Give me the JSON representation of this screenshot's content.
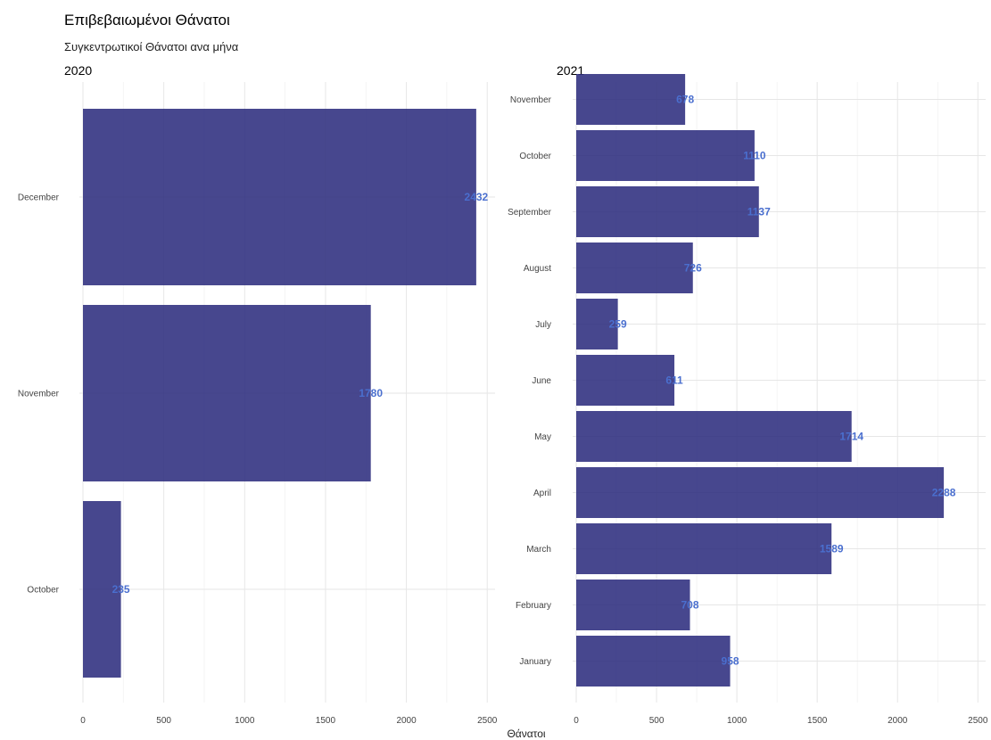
{
  "chart_data": {
    "title": "Επιβεβαιωμένοι Θάνατοι",
    "subtitle": "Συγκεντρωτικοί Θάνατοι ανα μήνα",
    "xlabel": "Θάνατοι",
    "type": "bar",
    "orientation": "horizontal",
    "grid": true,
    "bar_color": "#2e2e7e",
    "label_color": "#4a6fcf",
    "panels": [
      {
        "title": "2020",
        "xlim": [
          0,
          2500
        ],
        "xticks": [
          0,
          500,
          1000,
          1500,
          2000,
          2500
        ],
        "categories": [
          "October",
          "November",
          "December"
        ],
        "values": [
          235,
          1780,
          2432
        ]
      },
      {
        "title": "2021",
        "xlim": [
          0,
          2500
        ],
        "xticks": [
          0,
          500,
          1000,
          1500,
          2000,
          2500
        ],
        "categories": [
          "January",
          "February",
          "March",
          "April",
          "May",
          "June",
          "July",
          "August",
          "September",
          "October",
          "November"
        ],
        "values": [
          958,
          708,
          1589,
          2288,
          1714,
          611,
          259,
          726,
          1137,
          1110,
          678
        ]
      }
    ]
  }
}
